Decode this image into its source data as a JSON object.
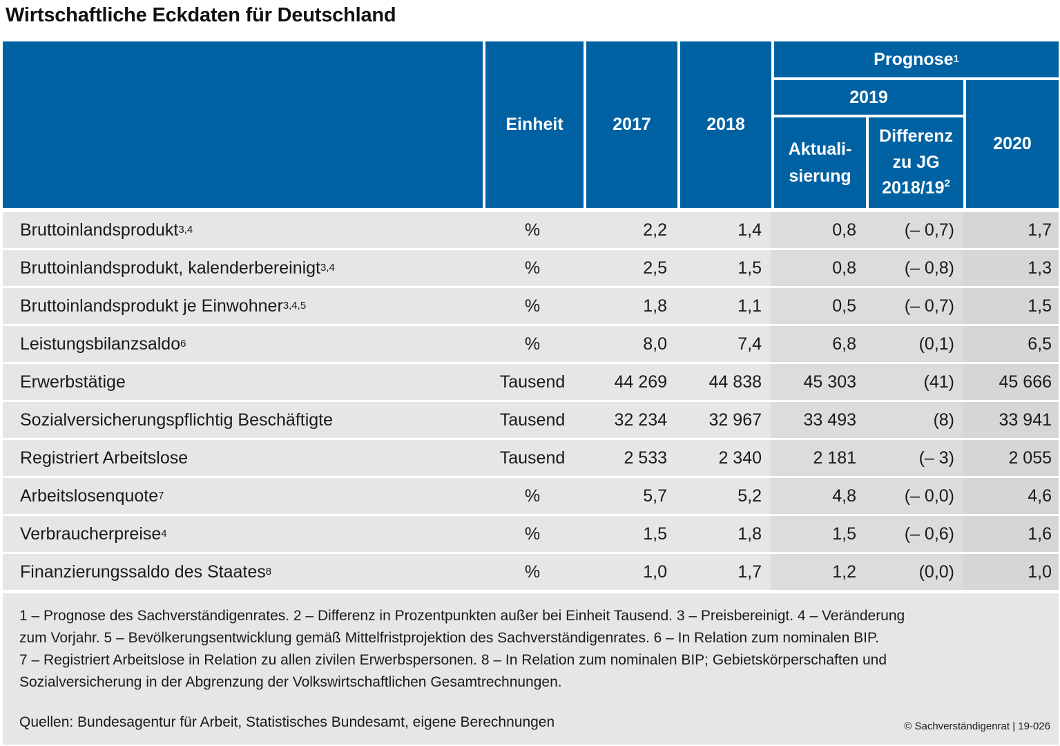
{
  "title": "Wirtschaftliche Eckdaten für Deutschland",
  "header": {
    "einheit": "Einheit",
    "y2017": "2017",
    "y2018": "2018",
    "prognose": "Prognose",
    "prognose_fn": "1",
    "y2019": "2019",
    "aktual_line1": "Aktuali-",
    "aktual_line2": "sierung",
    "diff_line1": "Differenz",
    "diff_line2": "zu JG",
    "diff_line3": "2018/19",
    "diff_fn": "2",
    "y2020": "2020"
  },
  "rows": [
    {
      "label": "Bruttoinlandsprodukt",
      "fn": "3,4",
      "unit": "%",
      "v2017": "2,2",
      "v2018": "1,4",
      "akt": "0,8",
      "diff": "(–  0,7)",
      "v2020": "1,7"
    },
    {
      "label": "Bruttoinlandsprodukt, kalenderbereinigt",
      "fn": "3,4",
      "unit": "%",
      "v2017": "2,5",
      "v2018": "1,5",
      "akt": "0,8",
      "diff": "(–  0,8)",
      "v2020": "1,3"
    },
    {
      "label": "Bruttoinlandsprodukt je Einwohner",
      "fn": "3,4,5",
      "unit": "%",
      "v2017": "1,8",
      "v2018": "1,1",
      "akt": "0,5",
      "diff": "(–  0,7)",
      "v2020": "1,5"
    },
    {
      "label": "Leistungsbilanzsaldo",
      "fn": "6",
      "unit": "%",
      "v2017": "8,0",
      "v2018": "7,4",
      "akt": "6,8",
      "diff": "(0,1)",
      "v2020": "6,5"
    },
    {
      "label": "Erwerbstätige",
      "fn": "",
      "unit": "Tausend",
      "v2017": "44 269",
      "v2018": "44 838",
      "akt": "45 303",
      "diff": "(41)",
      "v2020": "45 666"
    },
    {
      "label": "Sozialversicherungspflichtig Beschäftigte",
      "fn": "",
      "unit": "Tausend",
      "v2017": "32 234",
      "v2018": "32 967",
      "akt": "33 493",
      "diff": "(8)",
      "v2020": "33 941"
    },
    {
      "label": "Registriert Arbeitslose",
      "fn": "",
      "unit": "Tausend",
      "v2017": "2 533",
      "v2018": "2 340",
      "akt": "2 181",
      "diff": "(–  3)",
      "v2020": "2 055"
    },
    {
      "label": "Arbeitslosenquote",
      "fn": "7",
      "unit": "%",
      "v2017": "5,7",
      "v2018": "5,2",
      "akt": "4,8",
      "diff": "(–  0,0)",
      "v2020": "4,6"
    },
    {
      "label": "Verbraucherpreise",
      "fn": "4",
      "unit": "%",
      "v2017": "1,5",
      "v2018": "1,8",
      "akt": "1,5",
      "diff": "(–  0,6)",
      "v2020": "1,6"
    },
    {
      "label": "Finanzierungssaldo des Staates",
      "fn": "8",
      "unit": "%",
      "v2017": "1,0",
      "v2018": "1,7",
      "akt": "1,2",
      "diff": "(0,0)",
      "v2020": "1,0"
    }
  ],
  "footnotes": [
    "1 – Prognose des Sachverständigenrates.  2 – Differenz in Prozentpunkten außer bei Einheit Tausend.  3 – Preisbereinigt.  4 – Veränderung",
    "zum Vorjahr.  5 – Bevölkerungsentwicklung gemäß Mittelfristprojektion des Sachverständigenrates.  6 – In Relation zum nominalen BIP.",
    "7 – Registriert Arbeitslose in Relation zu allen zivilen Erwerbspersonen.  8 – In Relation zum nominalen BIP; Gebietskörperschaften und",
    "Sozialversicherung in der Abgrenzung der Volkswirtschaftlichen Gesamtrechnungen."
  ],
  "sources": "Quellen: Bundesagentur für Arbeit, Statistisches Bundesamt, eigene Berechnungen",
  "copyright": "© Sachverständigenrat | 19-026"
}
